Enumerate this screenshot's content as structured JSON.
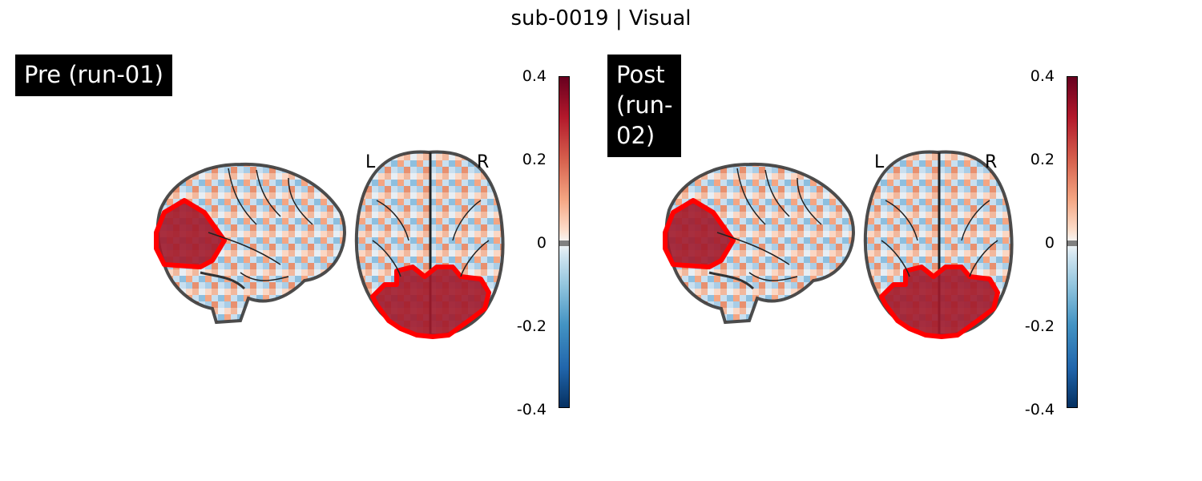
{
  "title": "sub-0019 | Visual",
  "panels": [
    {
      "label": "Pre (run-01)",
      "orientation_left": "L",
      "orientation_right": "R"
    },
    {
      "label": "Post (run-02)",
      "orientation_left": "L",
      "orientation_right": "R"
    }
  ],
  "colorbar": {
    "ticks": [
      "0.4",
      "0.2",
      "0",
      "-0.2",
      "-0.4"
    ],
    "range": [
      -0.4,
      0.4
    ],
    "colormap": "RdBu_r",
    "colors": {
      "max": "#67001f",
      "zero": "#f7f7f7",
      "min": "#053061",
      "mid_band": "#808080"
    }
  },
  "roi_outline_color": "#ff0000"
}
